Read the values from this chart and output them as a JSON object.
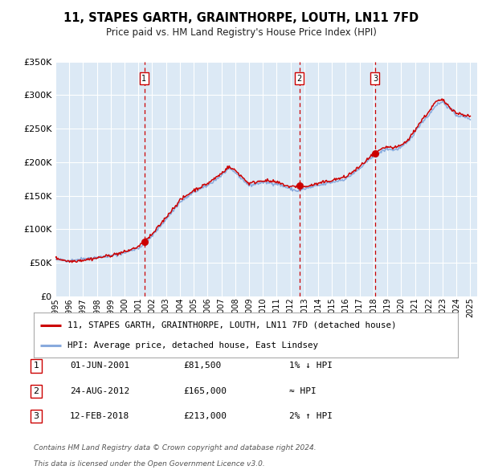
{
  "title": "11, STAPES GARTH, GRAINTHORPE, LOUTH, LN11 7FD",
  "subtitle": "Price paid vs. HM Land Registry's House Price Index (HPI)",
  "legend_line1": "11, STAPES GARTH, GRAINTHORPE, LOUTH, LN11 7FD (detached house)",
  "legend_line2": "HPI: Average price, detached house, East Lindsey",
  "footer1": "Contains HM Land Registry data © Crown copyright and database right 2024.",
  "footer2": "This data is licensed under the Open Government Licence v3.0.",
  "transactions": [
    {
      "num": 1,
      "date": "01-JUN-2001",
      "price": "£81,500",
      "hpi_rel": "1% ↓ HPI",
      "year": 2001.42,
      "price_val": 81500
    },
    {
      "num": 2,
      "date": "24-AUG-2012",
      "price": "£165,000",
      "hpi_rel": "≈ HPI",
      "year": 2012.65,
      "price_val": 165000
    },
    {
      "num": 3,
      "date": "12-FEB-2018",
      "price": "£213,000",
      "hpi_rel": "2% ↑ HPI",
      "year": 2018.12,
      "price_val": 213000
    }
  ],
  "price_color": "#cc0000",
  "hpi_color": "#88aadd",
  "plot_bg": "#dce9f5",
  "grid_color": "#ffffff",
  "ylim": [
    0,
    350000
  ],
  "yticks": [
    0,
    50000,
    100000,
    150000,
    200000,
    250000,
    300000,
    350000
  ],
  "xlim_start": 1995.0,
  "xlim_end": 2025.5,
  "xticks": [
    1995,
    1996,
    1997,
    1998,
    1999,
    2000,
    2001,
    2002,
    2003,
    2004,
    2005,
    2006,
    2007,
    2008,
    2009,
    2010,
    2011,
    2012,
    2013,
    2014,
    2015,
    2016,
    2017,
    2018,
    2019,
    2020,
    2021,
    2022,
    2023,
    2024,
    2025
  ]
}
